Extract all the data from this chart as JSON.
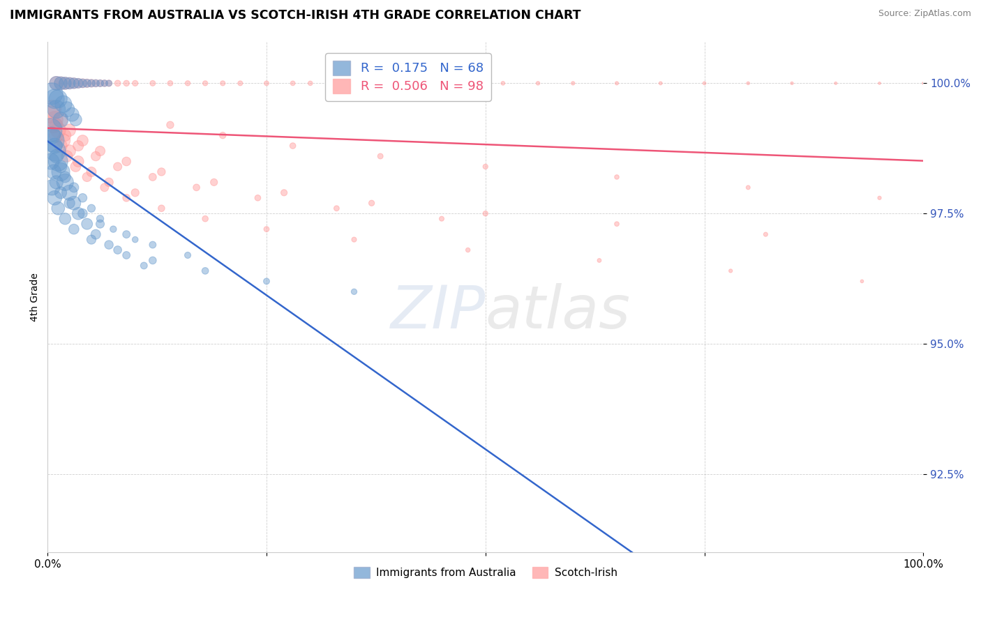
{
  "title": "IMMIGRANTS FROM AUSTRALIA VS SCOTCH-IRISH 4TH GRADE CORRELATION CHART",
  "source": "Source: ZipAtlas.com",
  "ylabel": "4th Grade",
  "x_min": 0.0,
  "x_max": 100.0,
  "y_min": 91.0,
  "y_max": 100.8,
  "y_ticks": [
    92.5,
    95.0,
    97.5,
    100.0
  ],
  "y_tick_labels": [
    "92.5%",
    "95.0%",
    "97.5%",
    "100.0%"
  ],
  "blue_color": "#6699CC",
  "pink_color": "#FF9999",
  "blue_line_color": "#3366CC",
  "pink_line_color": "#EE5577",
  "R_blue": 0.175,
  "N_blue": 68,
  "R_pink": 0.506,
  "N_pink": 98,
  "blue_points_x": [
    1.0,
    1.5,
    2.0,
    2.5,
    3.0,
    3.5,
    4.0,
    4.5,
    5.0,
    5.5,
    6.0,
    6.5,
    7.0,
    1.2,
    1.8,
    2.2,
    2.8,
    3.2,
    0.5,
    0.8,
    1.0,
    1.5,
    0.3,
    0.6,
    0.9,
    1.2,
    1.5,
    2.0,
    2.5,
    3.0,
    3.5,
    4.5,
    5.5,
    7.0,
    9.0,
    11.0,
    0.5,
    0.8,
    1.0,
    1.5,
    2.0,
    3.0,
    4.0,
    5.0,
    6.0,
    7.5,
    10.0,
    0.4,
    0.7,
    1.0,
    1.5,
    2.5,
    4.0,
    6.0,
    9.0,
    12.0,
    16.0,
    0.5,
    0.8,
    1.2,
    2.0,
    3.0,
    5.0,
    8.0,
    12.0,
    18.0,
    25.0,
    35.0
  ],
  "blue_points_y": [
    100.0,
    100.0,
    100.0,
    100.0,
    100.0,
    100.0,
    100.0,
    100.0,
    100.0,
    100.0,
    100.0,
    100.0,
    100.0,
    99.7,
    99.6,
    99.5,
    99.4,
    99.3,
    99.8,
    99.7,
    99.5,
    99.3,
    99.1,
    98.9,
    98.7,
    98.5,
    98.3,
    98.1,
    97.9,
    97.7,
    97.5,
    97.3,
    97.1,
    96.9,
    96.7,
    96.5,
    99.0,
    98.8,
    98.6,
    98.4,
    98.2,
    98.0,
    97.8,
    97.6,
    97.4,
    97.2,
    97.0,
    98.5,
    98.3,
    98.1,
    97.9,
    97.7,
    97.5,
    97.3,
    97.1,
    96.9,
    96.7,
    98.0,
    97.8,
    97.6,
    97.4,
    97.2,
    97.0,
    96.8,
    96.6,
    96.4,
    96.2,
    96.0
  ],
  "blue_point_sizes": [
    200,
    180,
    160,
    140,
    120,
    100,
    80,
    70,
    60,
    55,
    50,
    45,
    40,
    350,
    300,
    250,
    200,
    160,
    500,
    400,
    350,
    250,
    600,
    550,
    450,
    400,
    350,
    300,
    250,
    200,
    160,
    130,
    100,
    80,
    60,
    50,
    300,
    250,
    200,
    160,
    130,
    100,
    80,
    65,
    55,
    45,
    38,
    280,
    230,
    190,
    150,
    120,
    95,
    75,
    60,
    50,
    42,
    260,
    220,
    180,
    140,
    110,
    90,
    70,
    58,
    48,
    40,
    35
  ],
  "pink_points_x": [
    1.0,
    1.5,
    2.0,
    2.5,
    3.0,
    3.5,
    4.0,
    4.5,
    5.0,
    5.5,
    6.0,
    6.5,
    7.0,
    8.0,
    9.0,
    10.0,
    12.0,
    14.0,
    16.0,
    18.0,
    20.0,
    22.0,
    25.0,
    28.0,
    30.0,
    33.0,
    36.0,
    40.0,
    44.0,
    48.0,
    52.0,
    56.0,
    60.0,
    65.0,
    70.0,
    75.0,
    80.0,
    85.0,
    90.0,
    95.0,
    100.0,
    0.5,
    0.8,
    1.2,
    1.8,
    2.5,
    3.5,
    5.0,
    7.0,
    10.0,
    14.0,
    20.0,
    28.0,
    38.0,
    50.0,
    65.0,
    80.0,
    95.0,
    0.4,
    0.7,
    1.0,
    1.5,
    2.2,
    3.2,
    4.5,
    6.5,
    9.0,
    13.0,
    18.0,
    25.0,
    35.0,
    48.0,
    63.0,
    78.0,
    93.0,
    1.5,
    2.5,
    4.0,
    6.0,
    9.0,
    13.0,
    19.0,
    27.0,
    37.0,
    50.0,
    65.0,
    82.0,
    1.0,
    2.0,
    3.5,
    5.5,
    8.0,
    12.0,
    17.0,
    24.0,
    33.0,
    45.0
  ],
  "pink_points_y": [
    100.0,
    100.0,
    100.0,
    100.0,
    100.0,
    100.0,
    100.0,
    100.0,
    100.0,
    100.0,
    100.0,
    100.0,
    100.0,
    100.0,
    100.0,
    100.0,
    100.0,
    100.0,
    100.0,
    100.0,
    100.0,
    100.0,
    100.0,
    100.0,
    100.0,
    100.0,
    100.0,
    100.0,
    100.0,
    100.0,
    100.0,
    100.0,
    100.0,
    100.0,
    100.0,
    100.0,
    100.0,
    100.0,
    100.0,
    100.0,
    100.0,
    99.5,
    99.3,
    99.1,
    98.9,
    98.7,
    98.5,
    98.3,
    98.1,
    97.9,
    99.2,
    99.0,
    98.8,
    98.6,
    98.4,
    98.2,
    98.0,
    97.8,
    99.4,
    99.2,
    99.0,
    98.8,
    98.6,
    98.4,
    98.2,
    98.0,
    97.8,
    97.6,
    97.4,
    97.2,
    97.0,
    96.8,
    96.6,
    96.4,
    96.2,
    99.3,
    99.1,
    98.9,
    98.7,
    98.5,
    98.3,
    98.1,
    97.9,
    97.7,
    97.5,
    97.3,
    97.1,
    99.2,
    99.0,
    98.8,
    98.6,
    98.4,
    98.2,
    98.0,
    97.8,
    97.6,
    97.4
  ],
  "pink_point_sizes": [
    200,
    180,
    160,
    140,
    120,
    100,
    85,
    75,
    65,
    58,
    52,
    47,
    43,
    39,
    36,
    34,
    32,
    30,
    28,
    27,
    26,
    25,
    24,
    23,
    22,
    21,
    20,
    19,
    18,
    17,
    16,
    15,
    14,
    13,
    12,
    11,
    10,
    9,
    8,
    7,
    6,
    350,
    300,
    250,
    200,
    160,
    130,
    100,
    80,
    65,
    55,
    45,
    38,
    32,
    27,
    22,
    18,
    14,
    320,
    270,
    220,
    175,
    140,
    112,
    90,
    72,
    58,
    47,
    38,
    31,
    26,
    21,
    17,
    14,
    11,
    200,
    160,
    128,
    102,
    82,
    66,
    53,
    43,
    35,
    28,
    23,
    19,
    180,
    145,
    116,
    93,
    75,
    60,
    48,
    38,
    31,
    25
  ]
}
